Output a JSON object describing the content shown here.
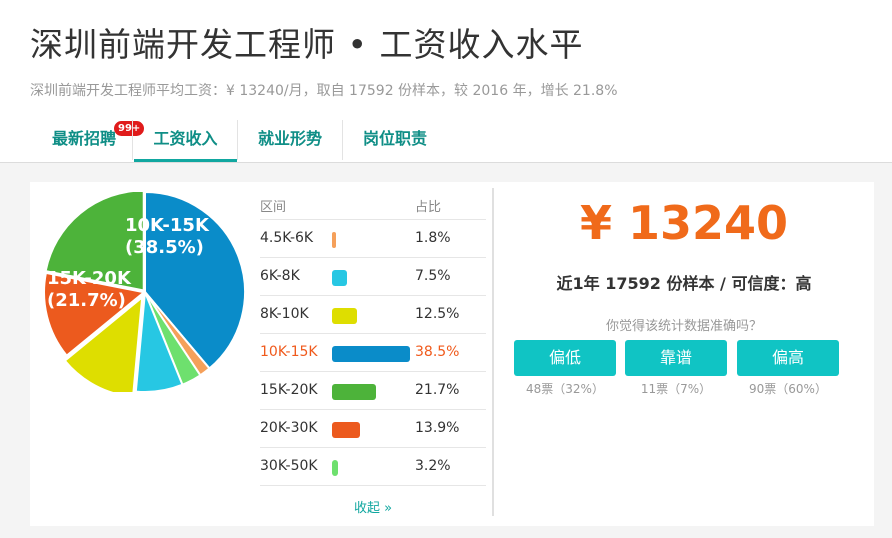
{
  "header": {
    "title": "深圳前端开发工程师 • 工资收入水平",
    "subtitle": "深圳前端开发工程师平均工资：¥ 13240/月，取自 17592 份样本，较 2016 年，增长 21.8%"
  },
  "tabs": [
    {
      "label": "最新招聘",
      "badge": "99+"
    },
    {
      "label": "工资收入"
    },
    {
      "label": "就业形势"
    },
    {
      "label": "岗位职责"
    }
  ],
  "table": {
    "col_range": "区间",
    "col_pct": "占比",
    "rows": [
      {
        "range": "4.5K-6K",
        "pct": "1.8%"
      },
      {
        "range": "6K-8K",
        "pct": "7.5%"
      },
      {
        "range": "8K-10K",
        "pct": "12.5%"
      },
      {
        "range": "10K-15K",
        "pct": "38.5%"
      },
      {
        "range": "15K-20K",
        "pct": "21.7%"
      },
      {
        "range": "20K-30K",
        "pct": "13.9%"
      },
      {
        "range": "30K-50K",
        "pct": "3.2%"
      }
    ],
    "collapse": "收起 »"
  },
  "chart_data": {
    "type": "pie",
    "categories": [
      "4.5K-6K",
      "6K-8K",
      "8K-10K",
      "10K-15K",
      "15K-20K",
      "20K-30K",
      "30K-50K"
    ],
    "values": [
      1.8,
      7.5,
      12.5,
      38.5,
      21.7,
      13.9,
      3.2
    ],
    "colors": [
      "#f5a05a",
      "#27c7e3",
      "#dede00",
      "#0a8cc9",
      "#4db33a",
      "#ec5a1e",
      "#6ee06e"
    ],
    "slice_labels": [
      {
        "name": "10K-15K",
        "pct": "(38.5%)"
      },
      {
        "name": "15K-20K",
        "pct": "(21.7%)"
      }
    ]
  },
  "summary": {
    "salary": "¥ 13240",
    "sample": "近1年 17592 份样本 / 可信度：高",
    "question": "你觉得该统计数据准确吗？",
    "votes": [
      {
        "label": "偏低",
        "count": "48票（32%）"
      },
      {
        "label": "靠谱",
        "count": "11票（7%）"
      },
      {
        "label": "偏高",
        "count": "90票（60%）"
      }
    ]
  }
}
